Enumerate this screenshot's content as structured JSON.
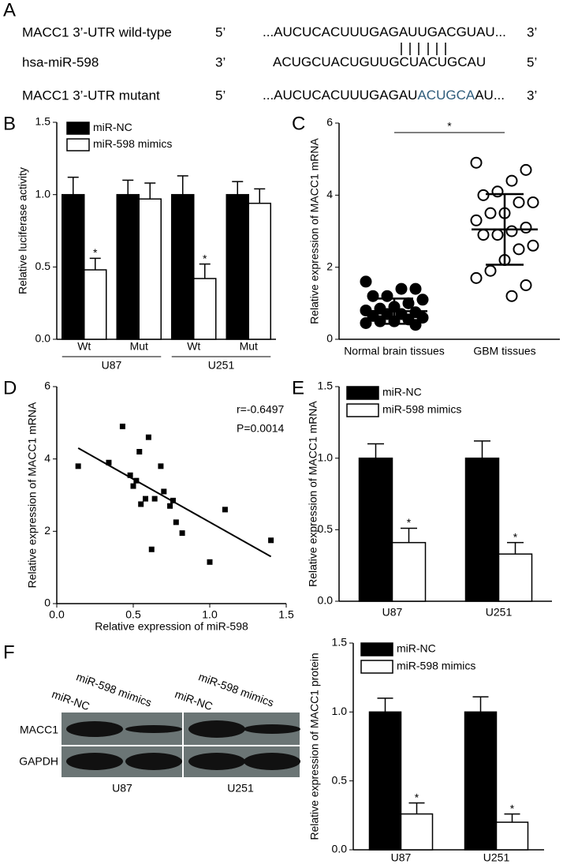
{
  "panel_labels": [
    "A",
    "B",
    "C",
    "D",
    "E",
    "F"
  ],
  "sequence_alignment": {
    "rows": [
      {
        "label": "MACC1 3’-UTR wild-type",
        "left_end": "5’",
        "sequence": [
          {
            "text": "...AUCUCACUUUGAGAUUGACGUAU...",
            "color": "#000000"
          }
        ],
        "right_end": "3’"
      },
      {
        "label": "hsa-miR-598",
        "left_end": "3’",
        "sequence": [
          {
            "text": "ACUGCUACUGUUGCUACUGCAU",
            "color": "#000000"
          }
        ],
        "right_end": "5’"
      },
      {
        "label": "MACC1 3’-UTR mutant",
        "left_end": "5’",
        "sequence": [
          {
            "text": "...AUCUCACUUUGAGAU",
            "color": "#000000"
          },
          {
            "text": "ACUGCA",
            "color": "#2f5d7c"
          },
          {
            "text": "AU...",
            "color": "#000000"
          }
        ],
        "right_end": "3’"
      }
    ]
  },
  "chart_data": [
    {
      "type": "bar",
      "categories": [
        "Wt",
        "Mut",
        "Wt",
        "Mut"
      ],
      "group_labels": [
        "U87",
        "U251"
      ],
      "y_label": "Relative luciferase activity",
      "ylim": [
        0,
        1.5
      ],
      "yticks": [
        {
          "value": 0,
          "label": "0.0"
        },
        0.5,
        {
          "value": 1,
          "label": "1.0"
        },
        1.5
      ],
      "legend": "upper left",
      "series": [
        {
          "name": "miR-NC",
          "color": "#000000",
          "values": [
            1,
            1,
            1,
            1
          ],
          "errors": [
            0.12,
            0.1,
            0.13,
            0.09
          ]
        },
        {
          "name": "miR-598 mimics",
          "color": "#ffffff",
          "values": [
            0.48,
            0.97,
            0.42,
            0.94
          ],
          "errors": [
            0.08,
            0.11,
            0.1,
            0.1
          ],
          "significance": [
            "*",
            null,
            "*",
            null
          ]
        }
      ]
    },
    {
      "type": "dot",
      "categories": [
        "Normal brain tissues",
        "GBM tissues"
      ],
      "y_label": "Relative expression of MACC1 mRNA",
      "ylim": [
        0,
        6
      ],
      "yticks": [
        0,
        2,
        4,
        6
      ],
      "significance": "*",
      "groups": [
        {
          "filled": true,
          "mean": 0.78,
          "sd": 0.35,
          "values": [
            1.6,
            1.4,
            1.4,
            1.2,
            1.2,
            1.1,
            1.0,
            0.9,
            0.85,
            0.8,
            0.75,
            0.7,
            0.7,
            0.65,
            0.6,
            0.55,
            0.5,
            0.5,
            0.45,
            0.4
          ]
        },
        {
          "filled": false,
          "mean": 3.05,
          "sd": 0.98,
          "values": [
            4.9,
            4.7,
            4.4,
            4.1,
            4.0,
            3.8,
            3.8,
            3.5,
            3.5,
            3.3,
            3.1,
            3.0,
            2.9,
            2.9,
            2.6,
            2.5,
            2.2,
            1.9,
            1.7,
            1.5,
            1.2
          ]
        }
      ]
    },
    {
      "type": "scatter",
      "x_label": "Relative expression of miR-598",
      "y_label": "Relative expression of MACC1 mRNA",
      "xlim": [
        0,
        1.5
      ],
      "xticks": [
        {
          "value": 0,
          "label": "0.0"
        },
        0.5,
        {
          "value": 1,
          "label": "1.0"
        },
        1.5
      ],
      "ylim": [
        0,
        6
      ],
      "yticks": [
        0,
        2,
        4,
        6
      ],
      "color": "#000000",
      "x": [
        0.14,
        0.34,
        0.43,
        0.48,
        0.5,
        0.52,
        0.54,
        0.55,
        0.58,
        0.6,
        0.62,
        0.64,
        0.68,
        0.7,
        0.74,
        0.76,
        0.78,
        0.82,
        1.0,
        1.1,
        1.4
      ],
      "values": [
        3.8,
        3.9,
        4.9,
        3.55,
        3.25,
        3.4,
        4.2,
        2.75,
        2.9,
        4.6,
        1.5,
        2.9,
        3.8,
        3.1,
        2.7,
        2.85,
        2.25,
        1.95,
        1.15,
        2.6,
        1.75
      ],
      "fit_line": {
        "x": [
          0.14,
          1.4
        ],
        "y": [
          4.3,
          1.3
        ]
      },
      "annotations": [
        "r=-0.6497",
        "P=0.0014"
      ]
    },
    {
      "type": "bar",
      "categories": [
        "U87",
        "U251"
      ],
      "y_label": "Relative expression of MACC1 mRNA",
      "ylim": [
        0,
        1.5
      ],
      "yticks": [
        {
          "value": 0,
          "label": "0.0"
        },
        0.5,
        {
          "value": 1,
          "label": "1.0"
        },
        1.5
      ],
      "legend": "upper left",
      "series": [
        {
          "name": "miR-NC",
          "color": "#000000",
          "values": [
            1,
            1
          ],
          "errors": [
            0.1,
            0.12
          ]
        },
        {
          "name": "miR-598 mimics",
          "color": "#ffffff",
          "values": [
            0.41,
            0.33
          ],
          "errors": [
            0.1,
            0.08
          ],
          "significance": [
            "*",
            "*"
          ]
        }
      ]
    },
    {
      "type": "bar",
      "categories": [
        "U87",
        "U251"
      ],
      "y_label": "Relative expression of MACC1 protein",
      "ylim": [
        0,
        1.5
      ],
      "yticks": [
        {
          "value": 0,
          "label": "0.0"
        },
        0.5,
        {
          "value": 1,
          "label": "1.0"
        },
        1.5
      ],
      "legend": "upper left",
      "series": [
        {
          "name": "miR-NC",
          "color": "#000000",
          "values": [
            1,
            1
          ],
          "errors": [
            0.1,
            0.11
          ]
        },
        {
          "name": "miR-598 mimics",
          "color": "#ffffff",
          "values": [
            0.26,
            0.2
          ],
          "errors": [
            0.08,
            0.06
          ],
          "significance": [
            "*",
            "*"
          ]
        }
      ]
    }
  ],
  "blot": {
    "lane_labels": [
      "miR-NC",
      "miR-598 mimics",
      "miR-NC",
      "miR-598 mimics"
    ],
    "row_labels": [
      "MACC1",
      "GAPDH"
    ],
    "group_labels": [
      "U87",
      "U251"
    ]
  }
}
